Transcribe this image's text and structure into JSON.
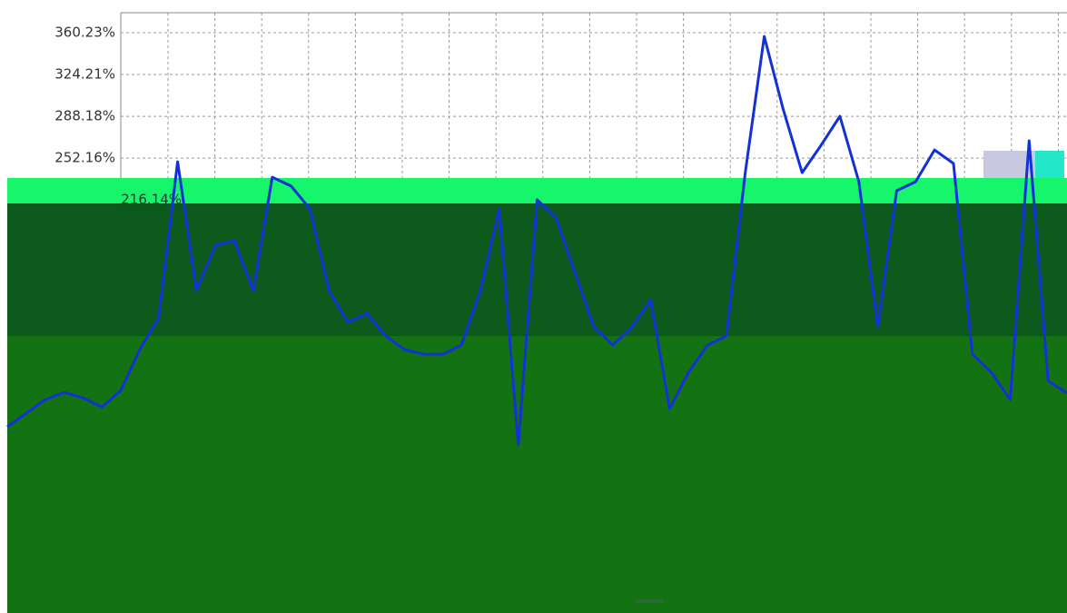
{
  "chart_data": {
    "type": "line",
    "yticks": [
      {
        "value": 360.23,
        "label": "360.23%"
      },
      {
        "value": 324.21,
        "label": "324.21%"
      },
      {
        "value": 288.18,
        "label": "288.18%"
      },
      {
        "value": 252.16,
        "label": "252.16%"
      },
      {
        "value": 216.14,
        "label": "216.14%"
      }
    ],
    "ylim": [
      -140.1,
      377.5
    ],
    "grid": true,
    "series": [
      {
        "color": "#1232d8",
        "values": [
          20.4,
          32.1,
          43.9,
          50.1,
          45.4,
          37.6,
          51.7,
          87.0,
          114.4,
          249.0,
          137.9,
          177.0,
          180.9,
          137.9,
          235.7,
          228.0,
          208.3,
          137.9,
          110.5,
          118.3,
          98.7,
          87.0,
          83.0,
          83.0,
          90.9,
          137.9,
          208.3,
          4.7,
          216.2,
          200.5,
          153.5,
          106.5,
          90.9,
          106.5,
          130.0,
          36.0,
          67.4,
          90.9,
          98.7,
          239.6,
          357.1,
          294.4,
          239.6,
          263.1,
          288.2,
          231.8,
          106.5,
          224.0,
          231.8,
          259.2,
          247.5,
          83.0,
          67.4,
          43.9,
          267.1,
          60.0,
          49.5
        ]
      }
    ]
  }
}
